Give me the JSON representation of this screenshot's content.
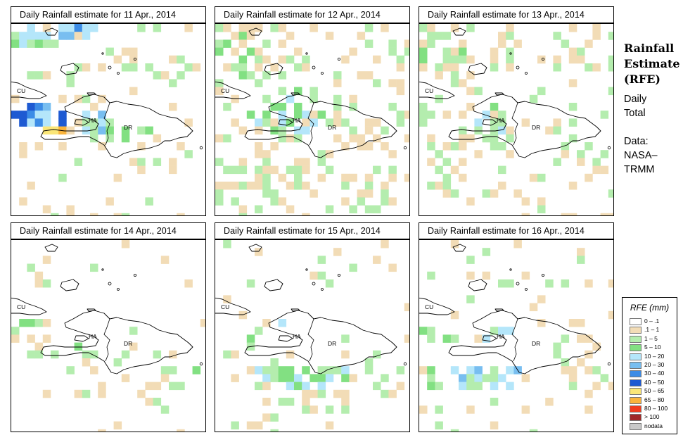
{
  "panels": [
    {
      "title": "Daily Rainfall estimate for  11 Apr., 2014"
    },
    {
      "title": "Daily Rainfall estimate for  12 Apr., 2014"
    },
    {
      "title": "Daily Rainfall estimate for  13 Apr., 2014"
    },
    {
      "title": "Daily Rainfall estimate for  14 Apr., 2014"
    },
    {
      "title": "Daily Rainfall estimate for  15 Apr., 2014"
    },
    {
      "title": "Daily Rainfall estimate for  16 Apr., 2014"
    }
  ],
  "map_labels": {
    "cuba": "CU",
    "haiti": "HA",
    "dominican_republic": "DR"
  },
  "sidebar": {
    "title_line1": "Rainfall",
    "title_line2": "Estimate",
    "title_line3": "(RFE)",
    "period_line1": "Daily",
    "period_line2": "Total",
    "source_line1": "Data:",
    "source_line2": "NASA–",
    "source_line3": "TRMM"
  },
  "legend": {
    "title": "RFE (mm)",
    "items": [
      {
        "label": "0 – .1",
        "color": "#ffffff"
      },
      {
        "label": ".1 – 1",
        "color": "#f2dcb6"
      },
      {
        "label": "1 – 5",
        "color": "#b4edae"
      },
      {
        "label": "5 – 10",
        "color": "#82e082"
      },
      {
        "label": "10 – 20",
        "color": "#b4e6fa"
      },
      {
        "label": "20 – 30",
        "color": "#78bef0"
      },
      {
        "label": "30 – 40",
        "color": "#3c8ce6"
      },
      {
        "label": "40 – 50",
        "color": "#1e5ad2"
      },
      {
        "label": "50 – 65",
        "color": "#fae678"
      },
      {
        "label": "65 – 80",
        "color": "#fab43c"
      },
      {
        "label": "80 – 100",
        "color": "#f03c1e"
      },
      {
        "label": "> 100",
        "color": "#a02828"
      },
      {
        "label": "nodata",
        "color": "#c8c8c8"
      }
    ]
  }
}
